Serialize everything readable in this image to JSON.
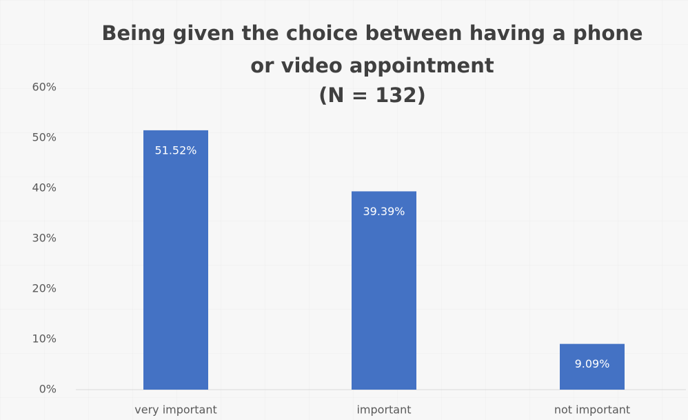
{
  "chart_data": {
    "type": "bar",
    "title": [
      "Being given the choice between having a phone",
      "or video appointment",
      "(N = 132)"
    ],
    "categories": [
      "very important",
      "important",
      "not important"
    ],
    "values": [
      51.52,
      39.39,
      9.09
    ],
    "value_labels": [
      "51.52%",
      "39.39%",
      "9.09%"
    ],
    "color": "#4472c4",
    "ylim": [
      0,
      60
    ],
    "yticks": [
      {
        "value": 0,
        "label": "0%"
      },
      {
        "value": 10,
        "label": "10%"
      },
      {
        "value": 20,
        "label": "20%"
      },
      {
        "value": 30,
        "label": "30%"
      },
      {
        "value": 40,
        "label": "40%"
      },
      {
        "value": 50,
        "label": "50%"
      },
      {
        "value": 60,
        "label": "60%"
      }
    ],
    "grid": false
  }
}
